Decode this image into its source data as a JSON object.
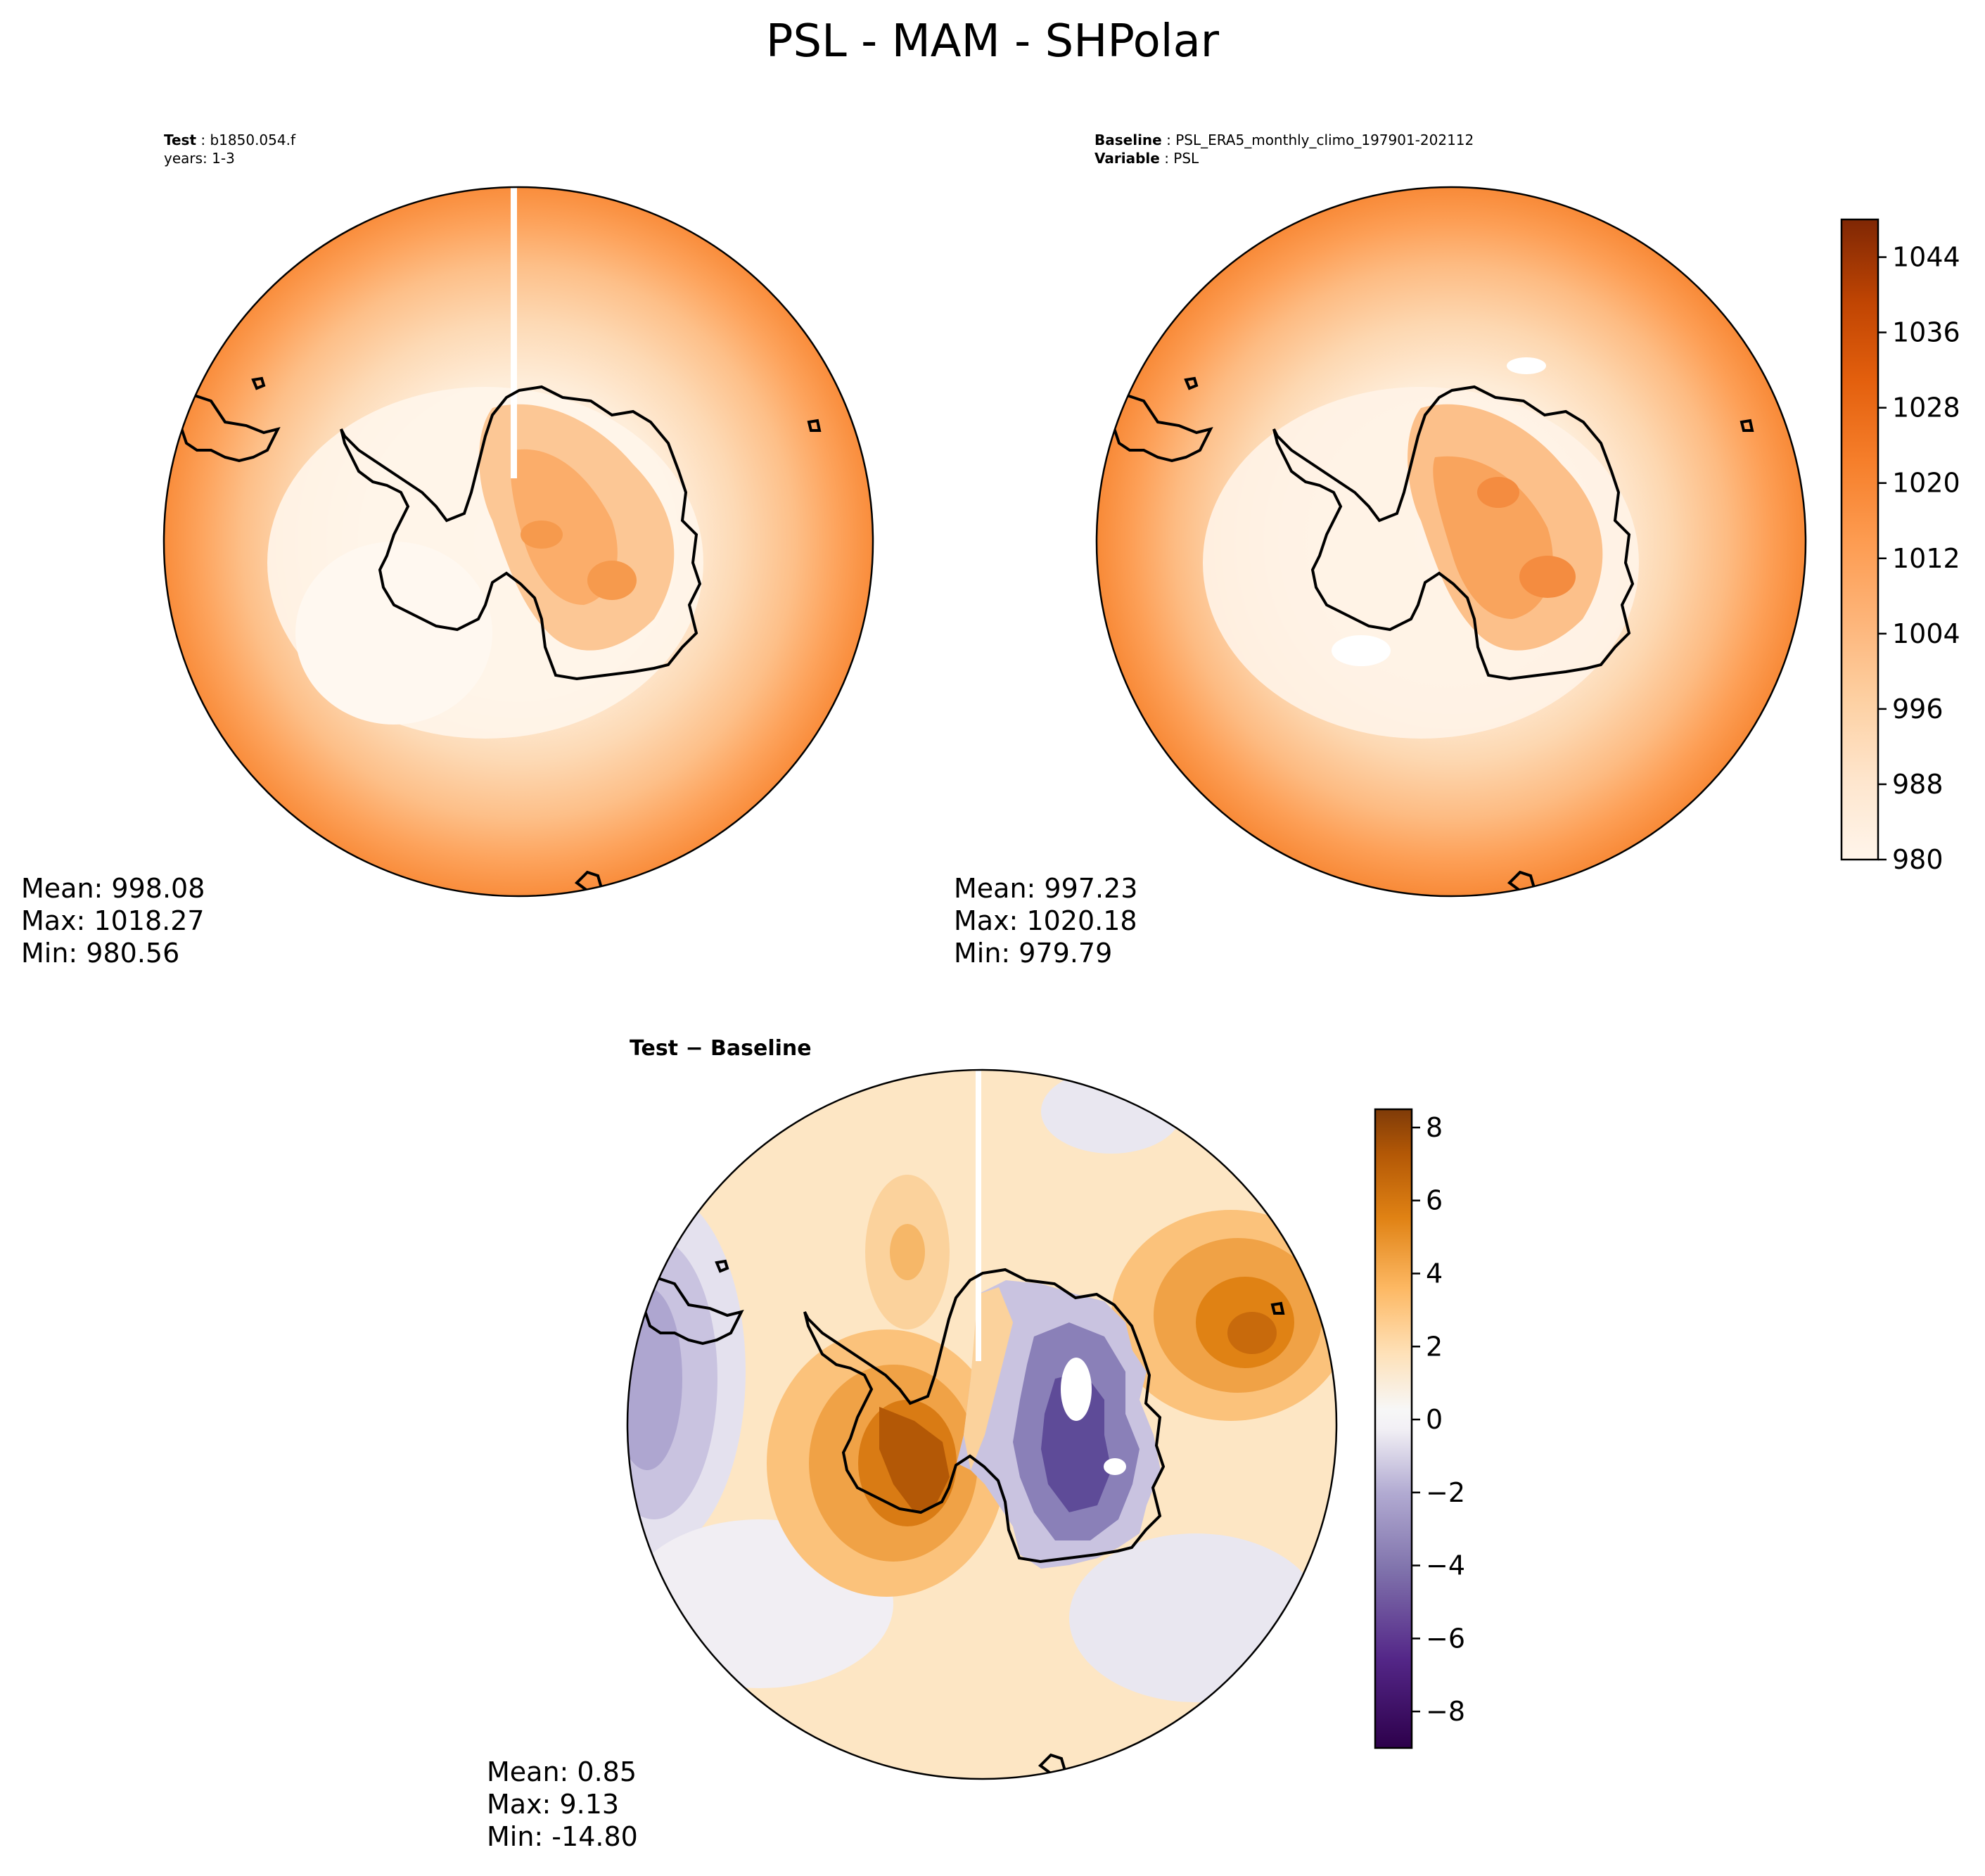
{
  "chart_data": {
    "type": "filled-contour polar map",
    "title": "PSL - MAM - SHPolar",
    "panels": [
      {
        "id": "test",
        "label_bold": "Test",
        "label_value": "b1850.054.f",
        "sub_label": "years: 1-3",
        "stats": {
          "mean": "Mean: 998.08",
          "max": "Max: 1018.27",
          "min": "Min: 980.56"
        }
      },
      {
        "id": "baseline",
        "label_bold": "Baseline",
        "label_value": "PSL_ERA5_monthly_climo_197901-202112",
        "label2_bold": "Variable",
        "label2_value": "PSL",
        "stats": {
          "mean": "Mean: 997.23",
          "max": "Max: 1020.18",
          "min": "Min: 979.79"
        }
      },
      {
        "id": "diff",
        "label_bold": "Test − Baseline",
        "stats": {
          "mean": "Mean:  0.85",
          "max": "Max:  9.13",
          "min": "Min: -14.80"
        }
      }
    ],
    "colorbar_main": {
      "range": [
        980,
        1048
      ],
      "levels_step": 4,
      "ticks": [
        980,
        988,
        996,
        1004,
        1012,
        1020,
        1028,
        1036,
        1044
      ],
      "tick_labels": [
        "980",
        "988",
        "996",
        "1004",
        "1012",
        "1020",
        "1028",
        "1036",
        "1044"
      ],
      "colors": [
        "#fff5eb",
        "#fee9d4",
        "#fdd9b4",
        "#fdc692",
        "#fda863",
        "#fd8c3b",
        "#f3701b",
        "#e25508",
        "#c44103",
        "#9d3303",
        "#7f2704"
      ]
    },
    "colorbar_diff": {
      "range": [
        -9,
        8.5
      ],
      "ticks": [
        -8,
        -6,
        -4,
        -2,
        0,
        2,
        4,
        6,
        8
      ],
      "tick_labels": [
        "−8",
        "−6",
        "−4",
        "−2",
        "0",
        "2",
        "4",
        "6",
        "8"
      ],
      "colors": [
        "#2d004b",
        "#542788",
        "#8073ac",
        "#b2abd2",
        "#d8daeb",
        "#f7f7f7",
        "#fee0b6",
        "#fdb863",
        "#e08214",
        "#b35806",
        "#7f3b08"
      ]
    }
  }
}
